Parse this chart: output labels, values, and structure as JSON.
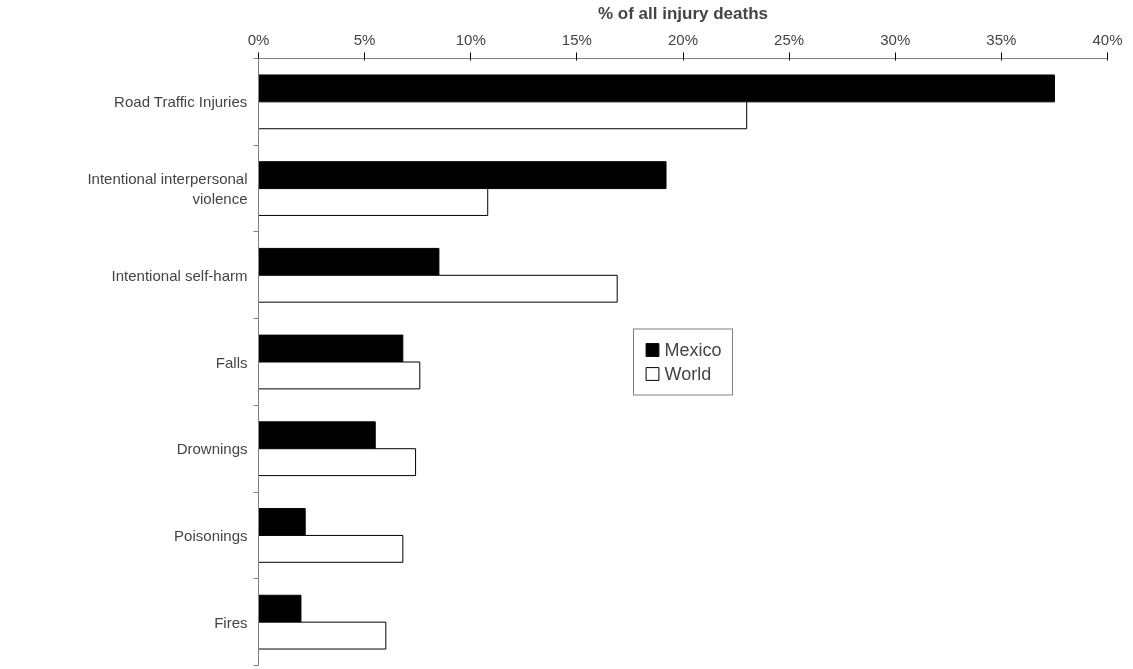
{
  "chart_data": {
    "type": "bar",
    "orientation": "horizontal",
    "xlabel": "% of all injury deaths",
    "categories": [
      "Road Traffic Injuries",
      "Intentional interpersonal violence",
      "Intentional self-harm",
      "Falls",
      "Drownings",
      "Poisonings",
      "Fires"
    ],
    "series": [
      {
        "name": "Mexico",
        "color": "#000000",
        "values": [
          37.5,
          19.2,
          8.5,
          6.8,
          5.5,
          2.2,
          2.0
        ]
      },
      {
        "name": "World",
        "color": "#ffffff",
        "values": [
          23.0,
          10.8,
          16.9,
          7.6,
          7.4,
          6.8,
          6.0
        ]
      }
    ],
    "xlim": [
      0,
      40
    ],
    "xticks": [
      {
        "value": 0,
        "label": "0%"
      },
      {
        "value": 5,
        "label": "5%"
      },
      {
        "value": 10,
        "label": "10%"
      },
      {
        "value": 15,
        "label": "15%"
      },
      {
        "value": 20,
        "label": "20%"
      },
      {
        "value": 25,
        "label": "25%"
      },
      {
        "value": 30,
        "label": "30%"
      },
      {
        "value": 35,
        "label": "35%"
      },
      {
        "value": 40,
        "label": "40%"
      }
    ],
    "grid": false,
    "legend": "center"
  }
}
